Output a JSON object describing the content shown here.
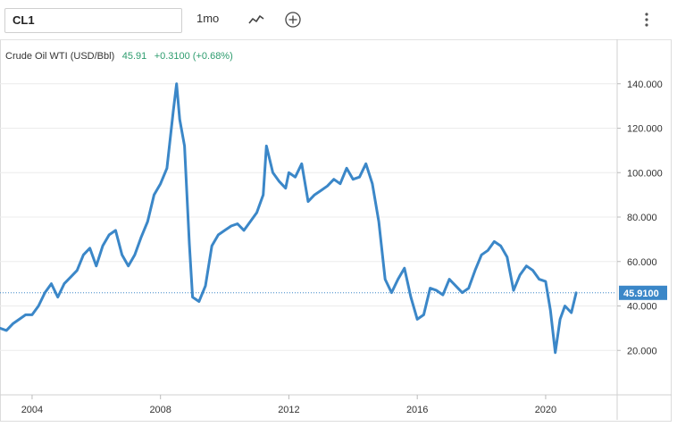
{
  "toolbar": {
    "symbol": "CL1",
    "interval": "1mo",
    "icons": {
      "chart_type": "line-chart-icon",
      "compare": "add-comparison-icon",
      "menu": "vertical-dots-menu-icon"
    }
  },
  "legend": {
    "name": "Crude Oil WTI (USD/Bbl)",
    "last": "45.91",
    "change": "+0.3100 (+0.68%)"
  },
  "colors": {
    "line": "#3b87c8",
    "last_badge": "#3b87c8",
    "positive": "#2d9c6e",
    "grid": "#ececec"
  },
  "chart_data": {
    "type": "line",
    "title": "",
    "xlabel": "",
    "ylabel": "",
    "xlim": [
      2003.0,
      2022.2
    ],
    "ylim": [
      0,
      160
    ],
    "x_ticks": [
      "2004",
      "2008",
      "2012",
      "2016",
      "2020"
    ],
    "y_ticks": [
      "20.000",
      "40.000",
      "60.000",
      "80.000",
      "100.000",
      "120.000",
      "140.000"
    ],
    "last_value_label": "45.9100",
    "grid": "horizontal",
    "series": [
      {
        "x": [
          2003.0,
          2003.2,
          2003.4,
          2003.6,
          2003.8,
          2004.0,
          2004.2,
          2004.4,
          2004.6,
          2004.8,
          2005.0,
          2005.2,
          2005.4,
          2005.6,
          2005.8,
          2006.0,
          2006.2,
          2006.4,
          2006.6,
          2006.8,
          2007.0,
          2007.2,
          2007.4,
          2007.6,
          2007.8,
          2008.0,
          2008.2,
          2008.4,
          2008.5,
          2008.6,
          2008.75,
          2008.9,
          2009.0,
          2009.2,
          2009.4,
          2009.6,
          2009.8,
          2010.0,
          2010.2,
          2010.4,
          2010.6,
          2010.8,
          2011.0,
          2011.2,
          2011.3,
          2011.5,
          2011.7,
          2011.9,
          2012.0,
          2012.2,
          2012.4,
          2012.6,
          2012.8,
          2013.0,
          2013.2,
          2013.4,
          2013.6,
          2013.8,
          2014.0,
          2014.2,
          2014.4,
          2014.6,
          2014.8,
          2015.0,
          2015.2,
          2015.4,
          2015.6,
          2015.8,
          2016.0,
          2016.2,
          2016.4,
          2016.6,
          2016.8,
          2017.0,
          2017.2,
          2017.4,
          2017.6,
          2017.8,
          2018.0,
          2018.2,
          2018.4,
          2018.6,
          2018.8,
          2019.0,
          2019.2,
          2019.4,
          2019.6,
          2019.8,
          2020.0,
          2020.15,
          2020.3,
          2020.45,
          2020.6,
          2020.8,
          2020.95
        ],
        "y": [
          30,
          29,
          32,
          34,
          36,
          36,
          40,
          46,
          50,
          44,
          50,
          53,
          56,
          63,
          66,
          58,
          67,
          72,
          74,
          63,
          58,
          63,
          71,
          78,
          90,
          95,
          102,
          128,
          140,
          124,
          112,
          68,
          44,
          42,
          49,
          67,
          72,
          74,
          76,
          77,
          74,
          78,
          82,
          90,
          112,
          100,
          96,
          93,
          100,
          98,
          104,
          87,
          90,
          92,
          94,
          97,
          95,
          102,
          97,
          98,
          104,
          95,
          78,
          52,
          46,
          52,
          57,
          44,
          34,
          36,
          48,
          47,
          45,
          52,
          49,
          46,
          48,
          56,
          63,
          65,
          69,
          67,
          62,
          47,
          54,
          58,
          56,
          52,
          51,
          38,
          19,
          34,
          40,
          37,
          45.91
        ]
      }
    ]
  }
}
